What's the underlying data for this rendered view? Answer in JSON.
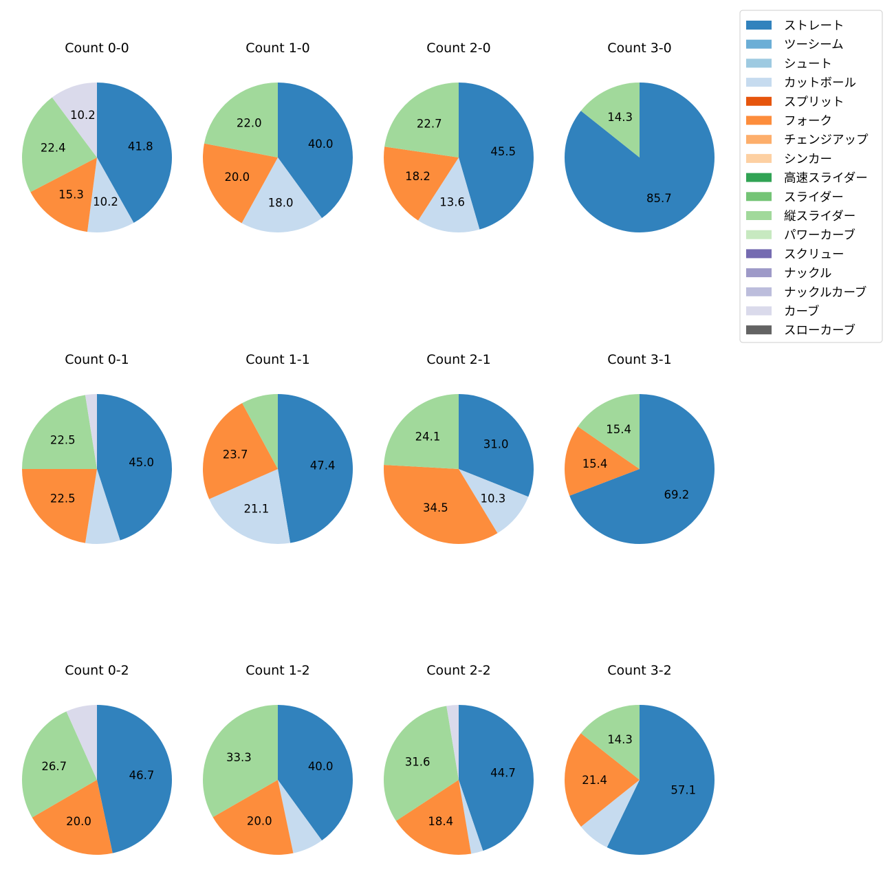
{
  "chart_data": {
    "type": "pie",
    "legend": {
      "placement": "top-right",
      "entries": [
        {
          "name": "ストレート",
          "color": "#3182bd"
        },
        {
          "name": "ツーシーム",
          "color": "#6baed6"
        },
        {
          "name": "シュート",
          "color": "#9ecae1"
        },
        {
          "name": "カットボール",
          "color": "#c6dbef"
        },
        {
          "name": "スプリット",
          "color": "#e6550d"
        },
        {
          "name": "フォーク",
          "color": "#fd8d3c"
        },
        {
          "name": "チェンジアップ",
          "color": "#fdae6b"
        },
        {
          "name": "シンカー",
          "color": "#fdd0a2"
        },
        {
          "name": "高速スライダー",
          "color": "#31a354"
        },
        {
          "name": "スライダー",
          "color": "#74c476"
        },
        {
          "name": "縦スライダー",
          "color": "#a1d99b"
        },
        {
          "name": "パワーカーブ",
          "color": "#c7e9c0"
        },
        {
          "name": "スクリュー",
          "color": "#756bb1"
        },
        {
          "name": "ナックル",
          "color": "#9e9ac8"
        },
        {
          "name": "ナックルカーブ",
          "color": "#bcbddc"
        },
        {
          "name": "カーブ",
          "color": "#dadaeb"
        },
        {
          "name": "スローカーブ",
          "color": "#636363"
        }
      ]
    },
    "pies": [
      {
        "title": "Count 0-0",
        "slices": [
          {
            "pitch": "ストレート",
            "value": 41.8,
            "label": "41.8"
          },
          {
            "pitch": "カットボール",
            "value": 10.2,
            "label": "10.2"
          },
          {
            "pitch": "フォーク",
            "value": 15.3,
            "label": "15.3"
          },
          {
            "pitch": "縦スライダー",
            "value": 22.4,
            "label": "22.4"
          },
          {
            "pitch": "カーブ",
            "value": 10.2,
            "label": "10.2"
          }
        ]
      },
      {
        "title": "Count 1-0",
        "slices": [
          {
            "pitch": "ストレート",
            "value": 40.0,
            "label": "40.0"
          },
          {
            "pitch": "カットボール",
            "value": 18.0,
            "label": "18.0"
          },
          {
            "pitch": "フォーク",
            "value": 20.0,
            "label": "20.0"
          },
          {
            "pitch": "縦スライダー",
            "value": 22.0,
            "label": "22.0"
          }
        ]
      },
      {
        "title": "Count 2-0",
        "slices": [
          {
            "pitch": "ストレート",
            "value": 45.5,
            "label": "45.5"
          },
          {
            "pitch": "カットボール",
            "value": 13.6,
            "label": "13.6"
          },
          {
            "pitch": "フォーク",
            "value": 18.2,
            "label": "18.2"
          },
          {
            "pitch": "縦スライダー",
            "value": 22.7,
            "label": "22.7"
          }
        ]
      },
      {
        "title": "Count 3-0",
        "slices": [
          {
            "pitch": "ストレート",
            "value": 85.7,
            "label": "85.7"
          },
          {
            "pitch": "縦スライダー",
            "value": 14.3,
            "label": "14.3"
          }
        ]
      },
      {
        "title": "Count 0-1",
        "slices": [
          {
            "pitch": "ストレート",
            "value": 45.0,
            "label": "45.0"
          },
          {
            "pitch": "カットボール",
            "value": 7.5,
            "label": ""
          },
          {
            "pitch": "フォーク",
            "value": 22.5,
            "label": "22.5"
          },
          {
            "pitch": "縦スライダー",
            "value": 22.5,
            "label": "22.5"
          },
          {
            "pitch": "カーブ",
            "value": 2.5,
            "label": ""
          }
        ]
      },
      {
        "title": "Count 1-1",
        "slices": [
          {
            "pitch": "ストレート",
            "value": 47.4,
            "label": "47.4"
          },
          {
            "pitch": "カットボール",
            "value": 21.1,
            "label": "21.1"
          },
          {
            "pitch": "フォーク",
            "value": 23.7,
            "label": "23.7"
          },
          {
            "pitch": "縦スライダー",
            "value": 7.9,
            "label": ""
          }
        ]
      },
      {
        "title": "Count 2-1",
        "slices": [
          {
            "pitch": "ストレート",
            "value": 31.0,
            "label": "31.0"
          },
          {
            "pitch": "カットボール",
            "value": 10.3,
            "label": "10.3"
          },
          {
            "pitch": "フォーク",
            "value": 34.5,
            "label": "34.5"
          },
          {
            "pitch": "縦スライダー",
            "value": 24.1,
            "label": "24.1"
          }
        ]
      },
      {
        "title": "Count 3-1",
        "slices": [
          {
            "pitch": "ストレート",
            "value": 69.2,
            "label": "69.2"
          },
          {
            "pitch": "フォーク",
            "value": 15.4,
            "label": "15.4"
          },
          {
            "pitch": "縦スライダー",
            "value": 15.4,
            "label": "15.4"
          }
        ]
      },
      {
        "title": "Count 0-2",
        "slices": [
          {
            "pitch": "ストレート",
            "value": 46.7,
            "label": "46.7"
          },
          {
            "pitch": "フォーク",
            "value": 20.0,
            "label": "20.0"
          },
          {
            "pitch": "縦スライダー",
            "value": 26.7,
            "label": "26.7"
          },
          {
            "pitch": "カーブ",
            "value": 6.7,
            "label": ""
          }
        ]
      },
      {
        "title": "Count 1-2",
        "slices": [
          {
            "pitch": "ストレート",
            "value": 40.0,
            "label": "40.0"
          },
          {
            "pitch": "カットボール",
            "value": 6.7,
            "label": ""
          },
          {
            "pitch": "フォーク",
            "value": 20.0,
            "label": "20.0"
          },
          {
            "pitch": "縦スライダー",
            "value": 33.3,
            "label": "33.3"
          }
        ]
      },
      {
        "title": "Count 2-2",
        "slices": [
          {
            "pitch": "ストレート",
            "value": 44.7,
            "label": "44.7"
          },
          {
            "pitch": "カットボール",
            "value": 2.6,
            "label": ""
          },
          {
            "pitch": "フォーク",
            "value": 18.4,
            "label": "18.4"
          },
          {
            "pitch": "縦スライダー",
            "value": 31.6,
            "label": "31.6"
          },
          {
            "pitch": "カーブ",
            "value": 2.6,
            "label": ""
          }
        ]
      },
      {
        "title": "Count 3-2",
        "slices": [
          {
            "pitch": "ストレート",
            "value": 57.1,
            "label": "57.1"
          },
          {
            "pitch": "カットボール",
            "value": 7.1,
            "label": ""
          },
          {
            "pitch": "フォーク",
            "value": 21.4,
            "label": "21.4"
          },
          {
            "pitch": "縦スライダー",
            "value": 14.3,
            "label": "14.3"
          }
        ]
      }
    ]
  }
}
